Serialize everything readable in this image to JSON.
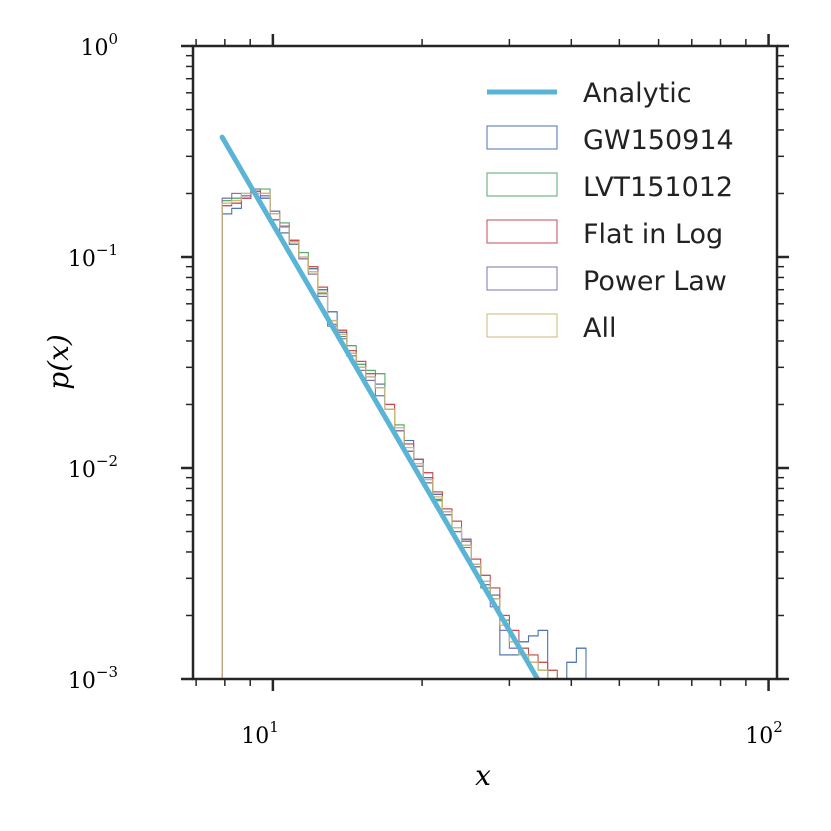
{
  "chart_data": {
    "type": "step-histogram",
    "xscale": "log",
    "yscale": "log",
    "xlim": [
      6.9,
      104
    ],
    "ylim": [
      0.001,
      1.0
    ],
    "xlabel": "x",
    "ylabel": "p(x)",
    "x_ticks": [
      {
        "base": "10",
        "exp": "1",
        "value": 10
      },
      {
        "base": "10",
        "exp": "2",
        "value": 100
      }
    ],
    "y_ticks": [
      {
        "base": "10",
        "exp": "0",
        "value": 1
      },
      {
        "base": "10",
        "exp": "−1",
        "value": 0.1
      },
      {
        "base": "10",
        "exp": "−2",
        "value": 0.01
      },
      {
        "base": "10",
        "exp": "−3",
        "value": 0.001
      }
    ],
    "legend_position": "top-right",
    "analytic": {
      "name": "Analytic",
      "color": "#5ab4d6",
      "x_start": 7.9,
      "y_start": 0.37,
      "x_end": 34.2,
      "y_end": 0.001
    },
    "bin_edges": [
      7.9,
      8.26,
      8.64,
      9.03,
      9.44,
      9.87,
      10.32,
      10.79,
      11.28,
      11.79,
      12.33,
      12.89,
      13.48,
      14.09,
      14.73,
      15.4,
      16.1,
      16.83,
      17.6,
      18.4,
      19.23,
      20.11,
      21.02,
      21.98,
      22.98,
      24.02,
      25.11,
      26.26,
      27.45,
      28.7,
      30.0,
      31.36,
      32.79,
      34.28,
      35.84,
      37.47,
      39.17,
      40.95,
      42.82,
      44.76,
      46.8
    ],
    "series": [
      {
        "name": "GW150914",
        "color": "#4c72b0",
        "values": [
          0.16,
          0.17,
          0.19,
          0.21,
          0.19,
          0.15,
          0.13,
          0.115,
          0.1,
          0.088,
          0.07,
          0.055,
          0.044,
          0.035,
          0.03,
          0.027,
          0.025,
          0.02,
          0.015,
          0.0135,
          0.011,
          0.009,
          0.0075,
          0.0062,
          0.005,
          0.0046,
          0.0034,
          0.0029,
          0.0025,
          0.0013,
          0.0013,
          0.0015,
          0.0016,
          0.0017,
          0.0,
          0.0,
          0.0012,
          0.0014,
          0.0,
          0.0
        ]
      },
      {
        "name": "LVT151012",
        "color": "#55a868",
        "values": [
          0.185,
          0.19,
          0.2,
          0.205,
          0.21,
          0.165,
          0.145,
          0.12,
          0.105,
          0.085,
          0.067,
          0.047,
          0.041,
          0.038,
          0.031,
          0.029,
          0.028,
          0.019,
          0.016,
          0.012,
          0.0105,
          0.0085,
          0.007,
          0.006,
          0.0052,
          0.0043,
          0.0035,
          0.0027,
          0.0024,
          0.0019,
          0.0015,
          0.0013,
          0.0012,
          0.0011,
          0.0,
          0.0,
          0.0,
          0.0,
          0.0,
          0.0
        ]
      },
      {
        "name": "Flat in Log",
        "color": "#c44e52",
        "values": [
          0.175,
          0.18,
          0.19,
          0.205,
          0.2,
          0.16,
          0.14,
          0.12,
          0.1,
          0.09,
          0.072,
          0.05,
          0.045,
          0.036,
          0.032,
          0.028,
          0.024,
          0.02,
          0.015,
          0.013,
          0.011,
          0.0095,
          0.0077,
          0.0064,
          0.0056,
          0.0045,
          0.0037,
          0.0031,
          0.0027,
          0.002,
          0.0017,
          0.0014,
          0.0013,
          0.0012,
          0.0011,
          0.0,
          0.0,
          0.0,
          0.0,
          0.0
        ]
      },
      {
        "name": "Power Law",
        "color": "#8172b2",
        "values": [
          0.19,
          0.2,
          0.195,
          0.2,
          0.195,
          0.165,
          0.14,
          0.118,
          0.098,
          0.083,
          0.065,
          0.048,
          0.042,
          0.034,
          0.029,
          0.026,
          0.022,
          0.019,
          0.015,
          0.012,
          0.0102,
          0.0085,
          0.0071,
          0.006,
          0.005,
          0.0042,
          0.0034,
          0.0028,
          0.0022,
          0.0017,
          0.0014,
          0.0013,
          0.0012,
          0.0011,
          0.0,
          0.0,
          0.0,
          0.0,
          0.0,
          0.0
        ]
      },
      {
        "name": "All",
        "color": "#ccb974",
        "values": [
          0.18,
          0.185,
          0.2,
          0.2,
          0.2,
          0.16,
          0.138,
          0.118,
          0.1,
          0.085,
          0.068,
          0.05,
          0.043,
          0.035,
          0.03,
          0.027,
          0.024,
          0.019,
          0.0155,
          0.0125,
          0.0105,
          0.0088,
          0.0073,
          0.0062,
          0.0052,
          0.0043,
          0.0035,
          0.0029,
          0.0024,
          0.0018,
          0.0015,
          0.0013,
          0.0012,
          0.0011,
          0.0,
          0.0,
          0.0,
          0.0,
          0.0,
          0.0
        ]
      }
    ]
  }
}
